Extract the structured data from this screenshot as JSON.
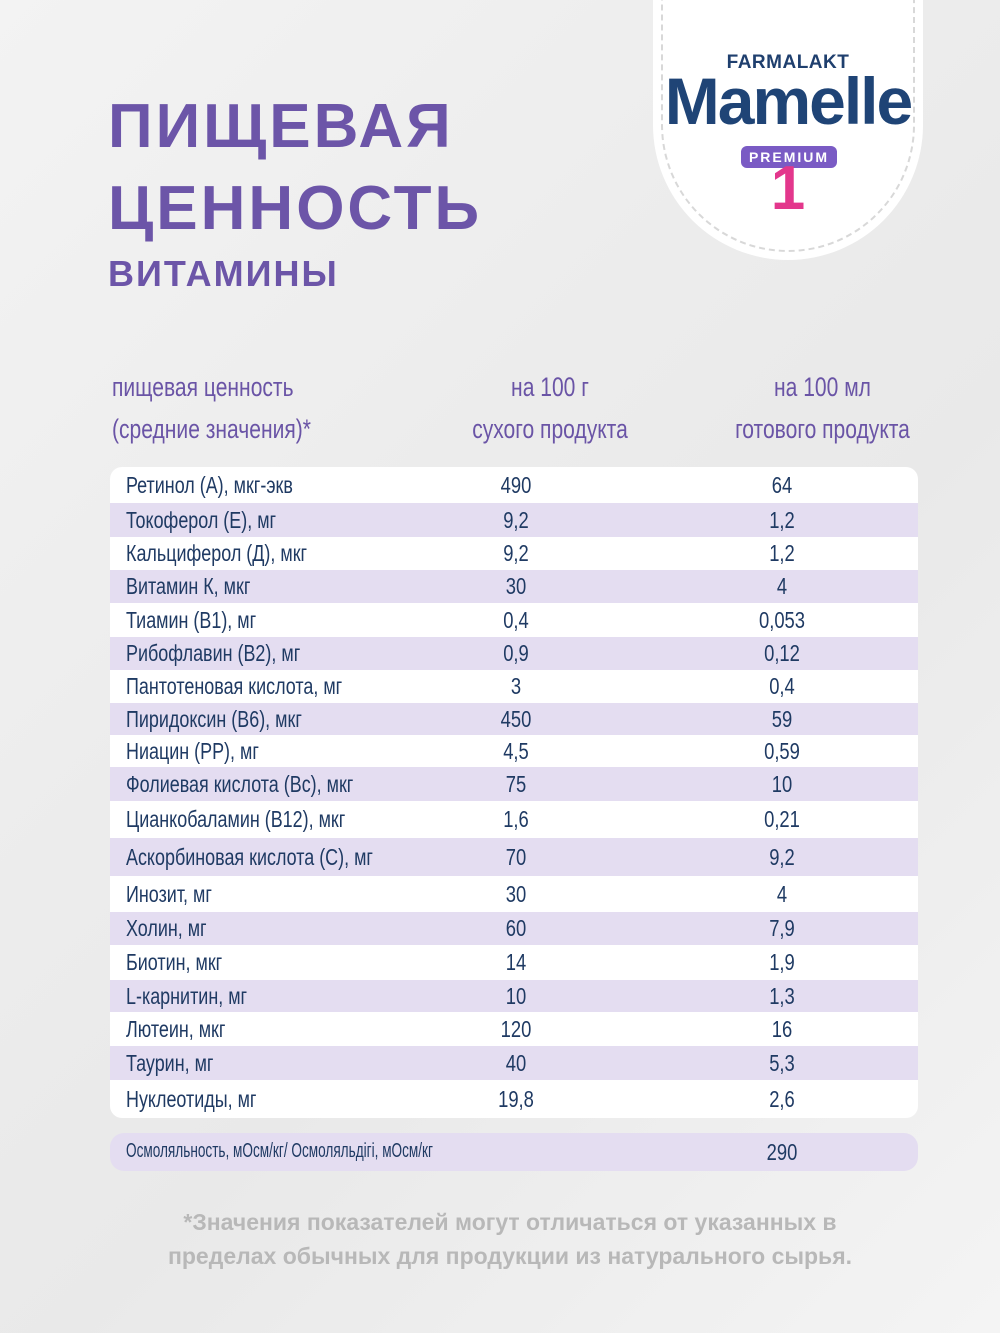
{
  "brand": {
    "company": "FARMALAKT",
    "name": "Mamelle",
    "tier": "PREMIUM",
    "stage": "1",
    "colors": {
      "navy": "#1f4476",
      "premium": "#7a5bc4",
      "stage": "#e3378c"
    }
  },
  "header": {
    "title_line1": "ПИЩЕВАЯ",
    "title_line2": "ЦЕННОСТЬ",
    "subtitle": "ВИТАМИНЫ",
    "accent_color": "#6c55a8"
  },
  "table": {
    "columns": [
      {
        "line1": "пищевая ценность",
        "line2": "(средние значения)*"
      },
      {
        "line1": "на 100 г",
        "line2": "сухого продукта"
      },
      {
        "line1": "на 100 мл",
        "line2": "готового продукта"
      }
    ],
    "rows": [
      {
        "name": "Ретинол (А), мкг-экв",
        "per_100g": "490",
        "per_100ml": "64"
      },
      {
        "name": "Токоферол (Е), мг",
        "per_100g": "9,2",
        "per_100ml": "1,2"
      },
      {
        "name": "Кальциферол (Д), мкг",
        "per_100g": "9,2",
        "per_100ml": "1,2"
      },
      {
        "name": "Витамин К, мкг",
        "per_100g": "30",
        "per_100ml": "4"
      },
      {
        "name": "Тиамин (В1), мг",
        "per_100g": "0,4",
        "per_100ml": "0,053"
      },
      {
        "name": "Рибофлавин (В2), мг",
        "per_100g": "0,9",
        "per_100ml": "0,12"
      },
      {
        "name": "Пантотеновая кислота, мг",
        "per_100g": "3",
        "per_100ml": "0,4"
      },
      {
        "name": "Пиридоксин (В6), мкг",
        "per_100g": "450",
        "per_100ml": "59"
      },
      {
        "name": "Ниацин (РР), мг",
        "per_100g": "4,5",
        "per_100ml": "0,59"
      },
      {
        "name": "Фолиевая кислота (Вс), мкг",
        "per_100g": "75",
        "per_100ml": "10"
      },
      {
        "name": "Цианкобаламин (В12), мкг",
        "per_100g": "1,6",
        "per_100ml": "0,21"
      },
      {
        "name": "Аскорбиновая кислота (С), мг",
        "per_100g": "70",
        "per_100ml": "9,2"
      },
      {
        "name": "Инозит, мг",
        "per_100g": "30",
        "per_100ml": "4"
      },
      {
        "name": "Холин, мг",
        "per_100g": "60",
        "per_100ml": "7,9"
      },
      {
        "name": "Биотин, мкг",
        "per_100g": "14",
        "per_100ml": "1,9"
      },
      {
        "name": "L-карнитин, мг",
        "per_100g": "10",
        "per_100ml": "1,3"
      },
      {
        "name": "Лютеин, мкг",
        "per_100g": "120",
        "per_100ml": "16"
      },
      {
        "name": "Таурин, мг",
        "per_100g": "40",
        "per_100ml": "5,3"
      },
      {
        "name": "Нуклеотиды, мг",
        "per_100g": "19,8",
        "per_100ml": "2,6"
      }
    ]
  },
  "osmolality": {
    "label": "Осмоляльность, мОсм/кг/ Осмоляльдігі, мОсм/кг",
    "value": "290"
  },
  "footnote": {
    "line1": "*Значения показателей могут отличаться от указанных в",
    "line2": "пределах обычных для продукции из натурального сырья."
  }
}
